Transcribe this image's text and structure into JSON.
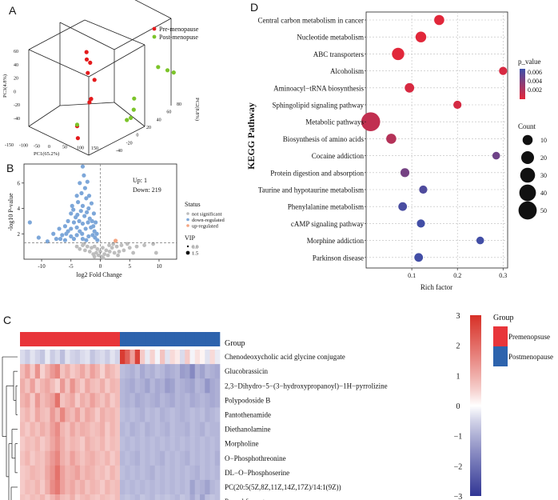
{
  "panel_letters": {
    "a": "A",
    "b": "B",
    "c": "C",
    "d": "D"
  },
  "chart_data": [
    {
      "panel": "A",
      "type": "scatter",
      "kind": "3d-pca",
      "xlabel": "PC1(65.2%)",
      "ylabel": "PC2(8.8%)",
      "zlabel": "PC3(4.8%)",
      "x_ticks": [
        "-150",
        "-100",
        "-50",
        "0",
        "50",
        "100",
        "150"
      ],
      "y_ticks": [
        "-40",
        "-20",
        "0",
        "20",
        "40",
        "60",
        "80"
      ],
      "z_ticks": [
        "-40",
        "-20",
        "0",
        "20",
        "40",
        "60"
      ],
      "series": [
        {
          "name": "Pre-menopause",
          "color": "#e41a1c",
          "points": [
            [
              -63,
              30,
              65
            ],
            [
              -55,
              24,
              60
            ],
            [
              -60,
              36,
              55
            ],
            [
              -57,
              28,
              48
            ],
            [
              -53,
              40,
              40
            ],
            [
              -50,
              30,
              26
            ],
            [
              -62,
              36,
              22
            ],
            [
              -45,
              -6,
              10
            ],
            [
              -43,
              -6,
              0
            ]
          ]
        },
        {
          "name": "Post-menopuse",
          "color": "#7cc42a",
          "points": [
            [
              150,
              40,
              48
            ],
            [
              160,
              46,
              45
            ],
            [
              146,
              22,
              54
            ],
            [
              94,
              10,
              30
            ],
            [
              88,
              14,
              20
            ],
            [
              92,
              4,
              15
            ],
            [
              86,
              0,
              14
            ],
            [
              -40,
              -10,
              12
            ]
          ]
        }
      ]
    },
    {
      "panel": "B",
      "type": "scatter",
      "kind": "volcano",
      "xlabel": "log2 Fold Change",
      "ylabel": "-log10 P-value",
      "xlim": [
        -13,
        13
      ],
      "ylim": [
        0,
        7.5
      ],
      "x_ticks": [
        -10,
        -5,
        0,
        5,
        10
      ],
      "y_ticks": [
        2,
        4,
        6
      ],
      "threshold_p_line": 1.3,
      "up_label": "Up: 1",
      "down_label": "Down: 219",
      "legend_title": "Status",
      "status_levels": [
        {
          "name": "not significant",
          "color": "#bdbdbd"
        },
        {
          "name": "down-regulated",
          "color": "#7da7d9"
        },
        {
          "name": "up-regulated",
          "color": "#f4a582"
        }
      ],
      "vip_title": "VIP",
      "vip_levels": [
        "0.0",
        "1.5"
      ],
      "down_regulated": [
        [
          -12,
          2.9
        ],
        [
          -10.5,
          1.7
        ],
        [
          -9,
          1.4
        ],
        [
          -8,
          2.0
        ],
        [
          -7.5,
          1.6
        ],
        [
          -7,
          2.4
        ],
        [
          -6.5,
          1.9
        ],
        [
          -6,
          2.6
        ],
        [
          -6,
          1.5
        ],
        [
          -5.5,
          3.0
        ],
        [
          -5.5,
          2.2
        ],
        [
          -5,
          3.6
        ],
        [
          -5,
          2.4
        ],
        [
          -5,
          1.8
        ],
        [
          -4.8,
          4.2
        ],
        [
          -4.5,
          2.9
        ],
        [
          -4.5,
          1.6
        ],
        [
          -4.2,
          3.3
        ],
        [
          -4,
          5.0
        ],
        [
          -4,
          2.5
        ],
        [
          -4,
          1.9
        ],
        [
          -3.8,
          4.5
        ],
        [
          -3.6,
          3.0
        ],
        [
          -3.5,
          6.0
        ],
        [
          -3.5,
          2.2
        ],
        [
          -3.3,
          3.8
        ],
        [
          -3.2,
          5.2
        ],
        [
          -3,
          7.3
        ],
        [
          -3,
          4.2
        ],
        [
          -3,
          2.8
        ],
        [
          -3,
          1.6
        ],
        [
          -2.8,
          6.6
        ],
        [
          -2.7,
          3.4
        ],
        [
          -2.6,
          5.6
        ],
        [
          -2.5,
          2.4
        ],
        [
          -2.4,
          4.8
        ],
        [
          -2.3,
          3.7
        ],
        [
          -2.2,
          6.1
        ],
        [
          -2.1,
          2.9
        ],
        [
          -2,
          4.0
        ],
        [
          -2,
          1.8
        ],
        [
          -1.9,
          5.0
        ],
        [
          -1.8,
          3.2
        ],
        [
          -1.6,
          2.5
        ],
        [
          -1.5,
          4.4
        ],
        [
          -1.4,
          3.0
        ],
        [
          -1.3,
          1.9
        ],
        [
          -1.2,
          2.6
        ],
        [
          -1.1,
          3.6
        ],
        [
          -1,
          2.2
        ],
        [
          -0.9,
          1.7
        ],
        [
          -0.8,
          2.9
        ],
        [
          -0.6,
          2.0
        ],
        [
          -0.5,
          1.5
        ],
        [
          -4.6,
          3.9
        ],
        [
          -3.9,
          3.5
        ],
        [
          -3.1,
          2.0
        ],
        [
          -2.4,
          1.5
        ],
        [
          -5.8,
          2.0
        ],
        [
          -6.8,
          1.6
        ]
      ],
      "not_significant": [
        [
          -4,
          1.0
        ],
        [
          -3.5,
          0.8
        ],
        [
          -3,
          1.1
        ],
        [
          -2.6,
          0.7
        ],
        [
          -2.2,
          1.0
        ],
        [
          -1.8,
          0.6
        ],
        [
          -1.5,
          0.9
        ],
        [
          -1.2,
          0.4
        ],
        [
          -1,
          1.0
        ],
        [
          -0.7,
          0.5
        ],
        [
          -0.5,
          0.8
        ],
        [
          -0.3,
          0.3
        ],
        [
          0,
          0.6
        ],
        [
          0.2,
          0.2
        ],
        [
          0.4,
          0.9
        ],
        [
          0.7,
          0.4
        ],
        [
          1,
          0.7
        ],
        [
          1.3,
          0.3
        ],
        [
          1.6,
          0.6
        ],
        [
          2,
          0.9
        ],
        [
          2.4,
          0.5
        ],
        [
          2.8,
          1.0
        ],
        [
          3.2,
          0.6
        ],
        [
          3.6,
          1.1
        ],
        [
          4,
          0.7
        ],
        [
          4.6,
          1.2
        ],
        [
          5,
          0.9
        ],
        [
          5.6,
          0.5
        ],
        [
          6.2,
          1.0
        ],
        [
          7.5,
          1.1
        ],
        [
          9,
          1.2
        ],
        [
          9.5,
          0.5
        ],
        [
          -1,
          0.2
        ],
        [
          0.5,
          0.1
        ],
        [
          1.5,
          1.1
        ],
        [
          2.2,
          1.2
        ],
        [
          -2.8,
          1.2
        ],
        [
          3,
          0.3
        ]
      ],
      "up_regulated": [
        [
          2.6,
          1.45
        ]
      ]
    },
    {
      "panel": "C",
      "type": "heatmap",
      "group_label": "Group",
      "groups": [
        {
          "name": "Premenopsuse",
          "color": "#e8353a"
        },
        {
          "name": "Postmenopause",
          "color": "#2d63ad"
        }
      ],
      "column_groups": [
        0,
        0,
        0,
        0,
        0,
        0,
        0,
        0,
        0,
        0,
        0,
        0,
        0,
        0,
        0,
        0,
        0,
        0,
        0,
        0,
        1,
        1,
        1,
        1,
        1,
        1,
        1,
        1,
        1,
        1,
        1,
        1,
        1,
        1,
        1,
        1,
        1,
        1,
        1,
        1
      ],
      "rows": [
        "Chenodeoxycholic acid glycine conjugate",
        "Glucobrassicin",
        "2,3−Dihydro−5−(3−hydroxypropanoyl)−1H−pyrrolizine",
        "Polypodoside B",
        "Pantothenamide",
        "Diethanolamine",
        "Morpholine",
        "O−Phosphothreonine",
        "DL−O−Phosphoserine",
        "PC(20:5(5Z,8Z,11Z,14Z,17Z)/14:1(9Z))",
        "Propyl formate"
      ],
      "values": [
        [
          -0.4,
          -0.6,
          -0.3,
          -0.5,
          -0.7,
          -0.2,
          -0.6,
          -0.4,
          -0.8,
          -0.3,
          -0.5,
          -0.6,
          -0.4,
          -0.3,
          -0.7,
          -0.5,
          -0.4,
          -0.6,
          -0.3,
          -0.5,
          2.8,
          2.2,
          1.2,
          2.7,
          0.6,
          -0.2,
          0.5,
          -0.1,
          0.7,
          -0.3,
          0.4,
          0.2,
          -0.4,
          0.6,
          -0.1,
          0.3,
          0.1,
          -0.3,
          0.4,
          -0.2
        ],
        [
          0.8,
          1.2,
          0.6,
          1.4,
          0.5,
          0.9,
          1.3,
          1.6,
          0.7,
          1.0,
          0.6,
          0.8,
          1.1,
          0.7,
          1.2,
          0.9,
          0.5,
          1.0,
          0.8,
          0.6,
          -0.8,
          -0.9,
          -1.0,
          -0.8,
          -1.1,
          -0.9,
          -1.0,
          -0.8,
          -0.9,
          -1.1,
          -1.0,
          -0.9,
          -1.3,
          -1.2,
          -1.6,
          -1.0,
          -1.2,
          -0.9,
          -1.0,
          -1.1
        ],
        [
          1.0,
          0.7,
          1.2,
          0.6,
          0.9,
          1.1,
          0.8,
          0.5,
          1.3,
          0.7,
          1.4,
          0.9,
          0.6,
          1.1,
          0.8,
          0.7,
          1.0,
          0.6,
          0.9,
          0.8,
          -0.9,
          -1.0,
          -1.1,
          -0.9,
          -1.0,
          -1.2,
          -0.9,
          -1.1,
          -1.0,
          -1.3,
          -1.2,
          -0.9,
          -1.0,
          -1.1,
          -1.2,
          -0.9,
          -1.0,
          -1.4,
          -1.1,
          -1.0
        ],
        [
          0.9,
          1.1,
          0.6,
          1.3,
          0.8,
          1.0,
          1.2,
          1.9,
          0.7,
          0.9,
          1.1,
          0.6,
          1.0,
          0.8,
          1.2,
          0.9,
          0.7,
          1.0,
          0.6,
          0.8,
          -0.9,
          -1.0,
          -0.9,
          -1.1,
          -1.0,
          -0.9,
          -1.0,
          -1.1,
          -0.9,
          -1.0,
          -1.1,
          -0.9,
          -1.0,
          -0.9,
          -1.1,
          -1.0,
          -0.9,
          -1.0,
          -1.1,
          -1.0
        ],
        [
          0.7,
          0.9,
          0.6,
          1.1,
          0.8,
          0.7,
          1.3,
          0.9,
          1.6,
          1.0,
          0.8,
          1.2,
          0.7,
          1.1,
          0.9,
          0.6,
          1.0,
          0.8,
          0.9,
          0.7,
          -0.8,
          -0.9,
          -0.8,
          -0.9,
          -1.0,
          -0.8,
          -0.9,
          -0.8,
          -1.0,
          -0.9,
          -0.8,
          -0.9,
          -1.0,
          -0.9,
          -0.8,
          -0.9,
          -0.8,
          -1.0,
          -0.9,
          -0.8
        ],
        [
          0.8,
          0.6,
          0.9,
          0.7,
          1.0,
          0.8,
          1.2,
          1.5,
          0.9,
          0.7,
          1.1,
          0.8,
          1.0,
          0.9,
          0.7,
          0.8,
          1.0,
          0.6,
          0.9,
          0.7,
          -0.9,
          -0.8,
          -1.0,
          -0.9,
          -0.8,
          -1.0,
          -0.9,
          -0.8,
          -0.9,
          -1.0,
          -0.8,
          -0.9,
          -0.9,
          -1.0,
          -0.8,
          -0.9,
          -1.0,
          -0.8,
          -0.9,
          -0.9
        ],
        [
          0.6,
          0.8,
          0.7,
          0.9,
          0.6,
          0.8,
          1.1,
          1.4,
          1.0,
          0.7,
          0.9,
          0.8,
          0.6,
          1.0,
          0.8,
          0.7,
          0.9,
          0.6,
          0.8,
          0.7,
          -0.8,
          -0.9,
          -0.8,
          -0.9,
          -0.8,
          -0.9,
          -0.8,
          -0.9,
          -0.8,
          -0.9,
          -0.8,
          -0.9,
          -0.8,
          -0.9,
          -0.8,
          -0.9,
          -0.8,
          -0.9,
          -0.8,
          -0.9
        ],
        [
          0.7,
          0.9,
          0.6,
          0.8,
          0.7,
          1.0,
          1.3,
          1.6,
          1.0,
          0.8,
          1.2,
          0.9,
          0.7,
          0.9,
          1.0,
          0.8,
          0.7,
          0.9,
          0.6,
          0.8,
          -0.9,
          -0.8,
          -0.9,
          -1.0,
          -0.8,
          -0.9,
          -0.8,
          -0.9,
          -1.0,
          -0.8,
          -0.9,
          -0.8,
          -0.9,
          -1.0,
          -0.8,
          -0.9,
          -0.8,
          -0.9,
          -0.8,
          -1.0
        ],
        [
          0.6,
          0.7,
          0.9,
          0.8,
          0.7,
          1.1,
          1.4,
          1.9,
          1.2,
          0.9,
          1.0,
          1.2,
          0.8,
          1.0,
          0.9,
          0.7,
          0.8,
          0.6,
          0.9,
          0.7,
          -0.8,
          -0.9,
          -0.8,
          -0.9,
          -0.8,
          -0.9,
          -1.0,
          -0.8,
          -0.9,
          -0.8,
          -0.9,
          -0.8,
          -0.9,
          -0.8,
          -0.9,
          -1.0,
          -0.8,
          -0.9,
          -0.8,
          -0.9
        ],
        [
          0.6,
          0.8,
          0.7,
          0.9,
          0.6,
          1.0,
          1.5,
          1.8,
          1.2,
          0.9,
          1.1,
          0.8,
          1.0,
          0.7,
          0.9,
          0.8,
          0.6,
          0.9,
          0.7,
          0.8,
          -0.9,
          -0.8,
          -0.9,
          -0.8,
          -0.9,
          -0.8,
          -0.9,
          -0.8,
          -0.9,
          -0.8,
          -0.9,
          -0.8,
          -0.9,
          -0.8,
          -1.2,
          -0.9,
          -1.0,
          -1.2,
          -0.9,
          -0.8
        ],
        [
          0.7,
          0.6,
          0.8,
          0.7,
          0.9,
          0.6,
          0.9,
          1.2,
          0.8,
          0.7,
          1.0,
          0.6,
          0.8,
          0.9,
          0.7,
          0.6,
          0.8,
          0.7,
          0.6,
          0.8,
          -0.8,
          -0.7,
          -0.8,
          -0.9,
          -0.7,
          -0.8,
          -0.9,
          -0.7,
          -0.8,
          -0.7,
          -0.8,
          -0.9,
          -0.7,
          -0.8,
          -1.1,
          -0.8,
          -1.2,
          -0.8,
          -0.7,
          -0.8
        ]
      ],
      "scale_ticks": [
        "3",
        "2",
        "1",
        "0",
        "−1",
        "−2",
        "−3"
      ],
      "scale_range": [
        -3,
        3
      ]
    },
    {
      "panel": "D",
      "type": "scatter",
      "kind": "kegg-bubble",
      "ylabel": "KEGG Pathway",
      "xlabel": "Rich factor",
      "x_ticks": [
        0.1,
        0.2,
        0.3
      ],
      "xlim": [
        0.0,
        0.31
      ],
      "pathways": [
        {
          "name": "Central carbon metabolism in cancer",
          "rich": 0.16,
          "p": 0.0012,
          "count": 10
        },
        {
          "name": "Nucleotide metabolism",
          "rich": 0.12,
          "p": 0.0012,
          "count": 12
        },
        {
          "name": "ABC transporters",
          "rich": 0.07,
          "p": 0.0012,
          "count": 18
        },
        {
          "name": "Alcoholism",
          "rich": 0.3,
          "p": 0.0015,
          "count": 5
        },
        {
          "name": "Aminoacyl−tRNA biosynthesis",
          "rich": 0.095,
          "p": 0.0015,
          "count": 8
        },
        {
          "name": "Sphingolipid signaling pathway",
          "rich": 0.2,
          "p": 0.0016,
          "count": 5
        },
        {
          "name": "Metabolic pathways",
          "rich": 0.01,
          "p": 0.0022,
          "count": 55
        },
        {
          "name": "Biosynthesis of amino acids",
          "rich": 0.055,
          "p": 0.0026,
          "count": 10
        },
        {
          "name": "Cocaine addiction",
          "rich": 0.285,
          "p": 0.0048,
          "count": 4
        },
        {
          "name": "Protein digestion and absorption",
          "rich": 0.085,
          "p": 0.0046,
          "count": 7
        },
        {
          "name": "Taurine and hypotaurine metabolism",
          "rich": 0.125,
          "p": 0.0058,
          "count": 5
        },
        {
          "name": "Phenylalanine metabolism",
          "rich": 0.08,
          "p": 0.006,
          "count": 6
        },
        {
          "name": "cAMP signaling pathway",
          "rich": 0.12,
          "p": 0.0062,
          "count": 5
        },
        {
          "name": "Morphine addiction",
          "rich": 0.25,
          "p": 0.0062,
          "count": 4
        },
        {
          "name": "Parkinson disease",
          "rich": 0.115,
          "p": 0.0062,
          "count": 6
        }
      ],
      "p_value_title": "p_value",
      "p_value_ticks": [
        "0.006",
        "0.004",
        "0.002"
      ],
      "p_value_range": [
        0.0011,
        0.0064
      ],
      "count_title": "Count",
      "count_levels": [
        10,
        20,
        30,
        40,
        50
      ]
    }
  ]
}
